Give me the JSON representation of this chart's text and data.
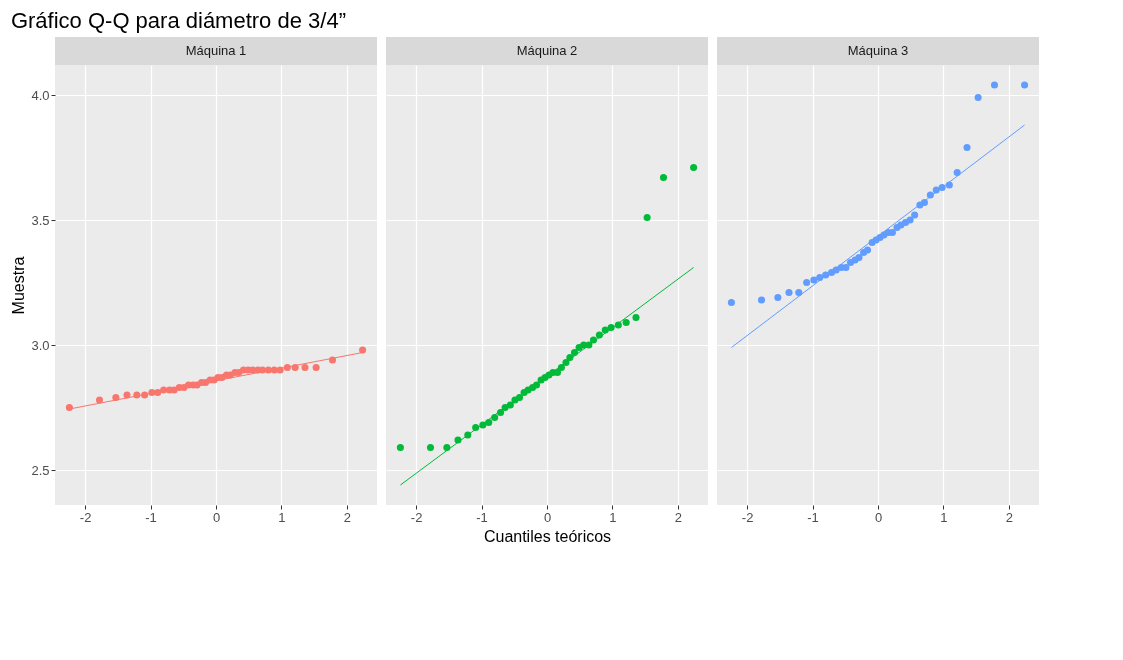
{
  "chart_data": [
    {
      "type": "scatter",
      "title": "Gráfico Q-Q para diámetro de 3/4”",
      "subtitle": "Máquina 1",
      "ylabel": "Muestra",
      "xlim": [
        -2.46,
        2.46
      ],
      "ylim": [
        2.36,
        4.12
      ],
      "xticks": [
        -2,
        -1,
        0,
        1,
        2
      ],
      "yticks": [
        2.5,
        {
          "value": 3,
          "label": "3.0"
        },
        3.5,
        {
          "value": 4,
          "label": "4.0"
        }
      ],
      "grid": true,
      "series": [
        {
          "type": "scatter",
          "marker": "circle",
          "color": "#f8766d",
          "x": [
            -2.24,
            -1.78,
            -1.53,
            -1.36,
            -1.21,
            -1.09,
            -0.98,
            -0.89,
            -0.8,
            -0.71,
            -0.64,
            -0.56,
            -0.49,
            -0.42,
            -0.35,
            -0.29,
            -0.22,
            -0.16,
            -0.09,
            -0.03,
            0.03,
            0.09,
            0.16,
            0.22,
            0.29,
            0.35,
            0.42,
            0.49,
            0.56,
            0.64,
            0.71,
            0.8,
            0.89,
            0.98,
            1.09,
            1.21,
            1.36,
            1.53,
            1.78,
            2.24
          ],
          "values": [
            2.75,
            2.78,
            2.79,
            2.8,
            2.8,
            2.8,
            2.81,
            2.81,
            2.82,
            2.82,
            2.82,
            2.83,
            2.83,
            2.84,
            2.84,
            2.84,
            2.85,
            2.85,
            2.86,
            2.86,
            2.87,
            2.87,
            2.88,
            2.88,
            2.89,
            2.89,
            2.9,
            2.9,
            2.9,
            2.9,
            2.9,
            2.9,
            2.9,
            2.9,
            2.91,
            2.91,
            2.91,
            2.91,
            2.94,
            2.98
          ]
        },
        {
          "type": "line",
          "marker": "none",
          "color": "#f8766d",
          "x": [
            -2.24,
            2.24
          ],
          "values": [
            2.744,
            2.97
          ]
        }
      ]
    },
    {
      "type": "scatter",
      "subtitle": "Máquina 2",
      "xlabel": "Cuantiles teóricos",
      "xlim": [
        -2.46,
        2.46
      ],
      "ylim": [
        2.36,
        4.12
      ],
      "xticks": [
        -2,
        -1,
        0,
        1,
        2
      ],
      "yticks": [
        2.5,
        3,
        3.5,
        4
      ],
      "tick_labels": "x",
      "grid": true,
      "series": [
        {
          "type": "scatter",
          "marker": "circle",
          "color": "#00ba38",
          "x": [
            -2.24,
            -1.78,
            -1.53,
            -1.36,
            -1.21,
            -1.09,
            -0.98,
            -0.89,
            -0.8,
            -0.71,
            -0.64,
            -0.56,
            -0.49,
            -0.42,
            -0.35,
            -0.29,
            -0.22,
            -0.16,
            -0.09,
            -0.03,
            0.03,
            0.09,
            0.16,
            0.22,
            0.29,
            0.35,
            0.42,
            0.49,
            0.56,
            0.64,
            0.71,
            0.8,
            0.89,
            0.98,
            1.09,
            1.21,
            1.36,
            1.53,
            1.78,
            2.24
          ],
          "values": [
            2.59,
            2.59,
            2.59,
            2.62,
            2.64,
            2.67,
            2.68,
            2.69,
            2.71,
            2.73,
            2.75,
            2.76,
            2.78,
            2.79,
            2.81,
            2.82,
            2.83,
            2.84,
            2.86,
            2.87,
            2.88,
            2.89,
            2.89,
            2.91,
            2.93,
            2.95,
            2.97,
            2.99,
            3.0,
            3.0,
            3.02,
            3.04,
            3.06,
            3.07,
            3.08,
            3.09,
            3.11,
            3.51,
            3.67,
            3.71
          ]
        },
        {
          "type": "line",
          "marker": "none",
          "color": "#00ba38",
          "x": [
            -2.24,
            2.24
          ],
          "values": [
            2.44,
            3.31
          ]
        }
      ]
    },
    {
      "type": "scatter",
      "subtitle": "Máquina 3",
      "xlim": [
        -2.46,
        2.46
      ],
      "ylim": [
        2.36,
        4.12
      ],
      "xticks": [
        -2,
        -1,
        0,
        1,
        2
      ],
      "yticks": [
        2.5,
        3,
        3.5,
        4
      ],
      "tick_labels": "x",
      "grid": true,
      "series": [
        {
          "type": "scatter",
          "marker": "circle",
          "color": "#619cff",
          "x": [
            -2.24,
            -1.78,
            -1.53,
            -1.36,
            -1.21,
            -1.09,
            -0.98,
            -0.89,
            -0.8,
            -0.71,
            -0.64,
            -0.56,
            -0.49,
            -0.42,
            -0.35,
            -0.29,
            -0.22,
            -0.16,
            -0.09,
            -0.03,
            0.03,
            0.09,
            0.16,
            0.22,
            0.29,
            0.35,
            0.42,
            0.49,
            0.56,
            0.64,
            0.71,
            0.8,
            0.89,
            0.98,
            1.09,
            1.21,
            1.36,
            1.53,
            1.78,
            2.24
          ],
          "values": [
            3.17,
            3.18,
            3.19,
            3.21,
            3.21,
            3.25,
            3.26,
            3.27,
            3.28,
            3.29,
            3.3,
            3.31,
            3.31,
            3.33,
            3.34,
            3.35,
            3.37,
            3.38,
            3.41,
            3.42,
            3.43,
            3.44,
            3.45,
            3.45,
            3.47,
            3.48,
            3.49,
            3.5,
            3.52,
            3.56,
            3.57,
            3.6,
            3.62,
            3.63,
            3.64,
            3.69,
            3.79,
            3.99,
            4.04,
            4.04
          ]
        },
        {
          "type": "line",
          "marker": "none",
          "color": "#619cff",
          "x": [
            -2.24,
            2.24
          ],
          "values": [
            2.99,
            3.88
          ]
        }
      ]
    }
  ]
}
